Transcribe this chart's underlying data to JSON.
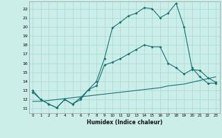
{
  "xlabel": "Humidex (Indice chaleur)",
  "bg_color": "#cceee8",
  "grid_color": "#aaddda",
  "line_color": "#1a7070",
  "xlim": [
    -0.5,
    23.5
  ],
  "ylim": [
    10.5,
    22.8
  ],
  "xticks": [
    0,
    1,
    2,
    3,
    4,
    5,
    6,
    7,
    8,
    9,
    10,
    11,
    12,
    13,
    14,
    15,
    16,
    17,
    18,
    19,
    20,
    21,
    22,
    23
  ],
  "yticks": [
    11,
    12,
    13,
    14,
    15,
    16,
    17,
    18,
    19,
    20,
    21,
    22
  ],
  "line1_x": [
    0,
    1,
    2,
    3,
    4,
    5,
    6,
    7,
    8,
    9,
    10,
    11,
    12,
    13,
    14,
    15,
    16,
    17,
    18,
    19,
    20,
    21,
    22,
    23
  ],
  "line1_y": [
    13.0,
    12.0,
    11.5,
    11.1,
    12.0,
    11.5,
    12.0,
    13.1,
    14.0,
    16.5,
    19.9,
    20.5,
    21.2,
    21.5,
    22.1,
    22.0,
    21.0,
    21.5,
    22.6,
    20.0,
    15.5,
    14.5,
    13.8,
    13.8
  ],
  "line2_x": [
    0,
    1,
    2,
    3,
    4,
    5,
    6,
    7,
    8,
    9,
    10,
    11,
    12,
    13,
    14,
    15,
    16,
    17,
    18,
    19,
    20,
    21,
    22,
    23
  ],
  "line2_y": [
    11.8,
    11.8,
    11.9,
    12.0,
    12.1,
    12.2,
    12.3,
    12.4,
    12.5,
    12.6,
    12.7,
    12.8,
    12.9,
    13.0,
    13.1,
    13.2,
    13.3,
    13.5,
    13.6,
    13.7,
    13.9,
    14.1,
    14.3,
    14.5
  ],
  "line3_x": [
    0,
    1,
    2,
    3,
    4,
    5,
    6,
    7,
    8,
    9,
    10,
    11,
    12,
    13,
    14,
    15,
    16,
    17,
    18,
    19,
    20,
    21,
    22,
    23
  ],
  "line3_y": [
    12.8,
    12.0,
    11.5,
    11.1,
    12.0,
    11.5,
    12.2,
    13.1,
    13.5,
    15.8,
    16.1,
    16.5,
    17.0,
    17.5,
    18.0,
    17.8,
    17.8,
    16.0,
    15.5,
    14.8,
    15.3,
    15.2,
    14.4,
    13.9
  ]
}
